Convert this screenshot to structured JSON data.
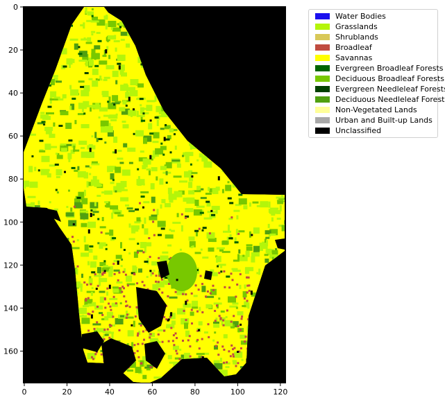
{
  "map": {
    "colors": {
      "background": "#000000",
      "savannas": "#ffff00",
      "grasslands": "#b4f50a",
      "deciduous_broadleaf": "#78c800",
      "evergreen_broadleaf": "#006400",
      "evergreen_needleleaf": "#004000",
      "deciduous_needleleaf": "#50a010",
      "broadleaf": "#c04c40",
      "unclassified": "#000000"
    },
    "xticks": [
      "0",
      "20",
      "40",
      "60",
      "80",
      "100",
      "120"
    ],
    "yticks": [
      "0",
      "20",
      "40",
      "60",
      "80",
      "100",
      "120",
      "140",
      "160"
    ],
    "xlim": [
      0,
      122
    ],
    "ylim": [
      0,
      175
    ]
  },
  "legend": {
    "items": [
      {
        "label": "Water Bodies",
        "color": "#1a10ee"
      },
      {
        "label": "Grasslands",
        "color": "#b4f50a"
      },
      {
        "label": "Shrublands",
        "color": "#d8c858"
      },
      {
        "label": "Broadleaf",
        "color": "#c04c40"
      },
      {
        "label": "Savannas",
        "color": "#ffff00"
      },
      {
        "label": "Evergreen Broadleaf Forests",
        "color": "#006400"
      },
      {
        "label": "Deciduous Broadleaf Forests",
        "color": "#78c800"
      },
      {
        "label": "Evergreen Needleleaf Forests",
        "color": "#004000"
      },
      {
        "label": "Deciduous Needleleaf Forests",
        "color": "#50a010"
      },
      {
        "label": "Non-Vegetated Lands",
        "color": "#ffff99"
      },
      {
        "label": "Urban and Built-up Lands",
        "color": "#a8a8a8"
      },
      {
        "label": "Unclassified",
        "color": "#000000"
      }
    ]
  }
}
